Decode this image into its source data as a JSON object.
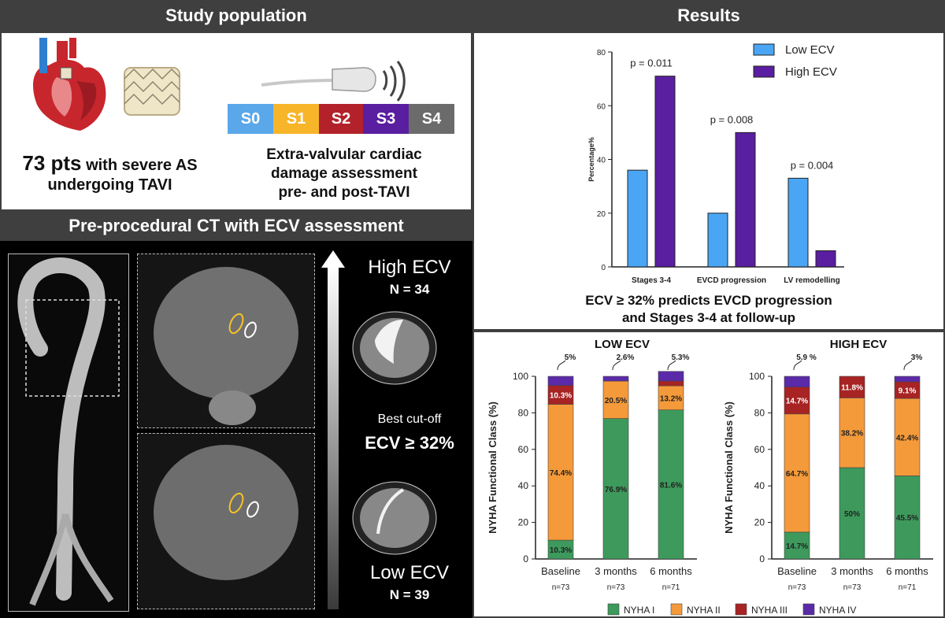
{
  "headers": {
    "study_population": "Study population",
    "results": "Results",
    "ct": "Pre-procedural CT with ECV assessment"
  },
  "population": {
    "count": "73 pts",
    "count_rest": " with severe AS",
    "line2": "undergoing TAVI",
    "assessment_line1": "Extra-valvular cardiac",
    "assessment_line2": "damage assessment",
    "assessment_line3": "pre- and post-TAVI"
  },
  "stages": [
    {
      "label": "S0",
      "color": "#5aa7ea"
    },
    {
      "label": "S1",
      "color": "#f7b52a"
    },
    {
      "label": "S2",
      "color": "#b3222a"
    },
    {
      "label": "S3",
      "color": "#5a1ea0"
    },
    {
      "label": "S4",
      "color": "#6b6b6b"
    }
  ],
  "ecv_scale": {
    "high_label": "High ECV",
    "high_n": "N = 34",
    "cutoff_label": "Best cut-off",
    "cutoff_value": "ECV ≥ 32%",
    "low_label": "Low ECV",
    "low_n": "N = 39"
  },
  "colors": {
    "low_ecv": "#4aa6f5",
    "high_ecv": "#5a1ea0",
    "nyha1": "#3d9a5c",
    "nyha2": "#f59a3a",
    "nyha3": "#a82323",
    "nyha4": "#5a2aa8"
  },
  "results_caption": {
    "line1": "ECV ≥ 32% predicts EVCD progression",
    "line2": "and Stages 3-4 at follow-up"
  },
  "nyha_legend": [
    "NYHA I",
    "NYHA II",
    "NYHA III",
    "NYHA IV"
  ],
  "chart_data": [
    {
      "type": "bar",
      "title": "",
      "categories": [
        "Stages 3-4",
        "EVCD progression",
        "LV remodelling"
      ],
      "series": [
        {
          "name": "Low ECV",
          "values": [
            36,
            20,
            33
          ]
        },
        {
          "name": "High ECV",
          "values": [
            71,
            50,
            6
          ]
        }
      ],
      "pvalues": [
        "p = 0.011",
        "p = 0.008",
        "p = 0.004"
      ],
      "ylabel": "Percentage%",
      "xlabel": "",
      "ylim": [
        0,
        80
      ],
      "yticks": [
        0,
        20,
        40,
        60,
        80
      ],
      "legend": "top-right",
      "grid": false
    },
    {
      "type": "bar",
      "stacked": true,
      "title": "LOW ECV",
      "ylabel": "NYHA Functional Class (%)",
      "ylim": [
        0,
        100
      ],
      "yticks": [
        0,
        20,
        40,
        60,
        80,
        100
      ],
      "categories": [
        "Baseline",
        "3 months",
        "6 months"
      ],
      "n_labels": [
        "n=73",
        "n=73",
        "n=71"
      ],
      "series": [
        {
          "name": "NYHA I",
          "values": [
            10.3,
            76.9,
            81.6
          ]
        },
        {
          "name": "NYHA II",
          "values": [
            74.4,
            20.5,
            13.2
          ]
        },
        {
          "name": "NYHA III",
          "values": [
            10.3,
            0,
            2.6
          ]
        },
        {
          "name": "NYHA IV",
          "values": [
            5,
            2.6,
            5.3
          ]
        }
      ],
      "segment_labels": [
        [
          "10.3%",
          "76.9%",
          "81.6%"
        ],
        [
          "74.4%",
          "20.5%",
          "13.2%"
        ],
        [
          "10.3%",
          "",
          ""
        ],
        [
          "",
          "",
          ""
        ]
      ],
      "top_callouts": [
        "5%",
        "2.6%",
        "5.3%"
      ]
    },
    {
      "type": "bar",
      "stacked": true,
      "title": "HIGH ECV",
      "ylabel": "NYHA Functional Class (%)",
      "ylim": [
        0,
        100
      ],
      "yticks": [
        0,
        20,
        40,
        60,
        80,
        100
      ],
      "categories": [
        "Baseline",
        "3 months",
        "6 months"
      ],
      "n_labels": [
        "n=73",
        "n=73",
        "n=71"
      ],
      "series": [
        {
          "name": "NYHA I",
          "values": [
            14.7,
            50,
            45.5
          ]
        },
        {
          "name": "NYHA II",
          "values": [
            64.7,
            38.2,
            42.4
          ]
        },
        {
          "name": "NYHA III",
          "values": [
            14.7,
            11.8,
            9.1
          ]
        },
        {
          "name": "NYHA IV",
          "values": [
            5.9,
            0,
            3
          ]
        }
      ],
      "segment_labels": [
        [
          "14.7%",
          "50%",
          "45.5%"
        ],
        [
          "64.7%",
          "38.2%",
          "42.4%"
        ],
        [
          "14.7%",
          "11.8%",
          "9.1%"
        ],
        [
          "",
          "",
          ""
        ]
      ],
      "top_callouts": [
        "5.9 %",
        "",
        "3%"
      ]
    }
  ]
}
